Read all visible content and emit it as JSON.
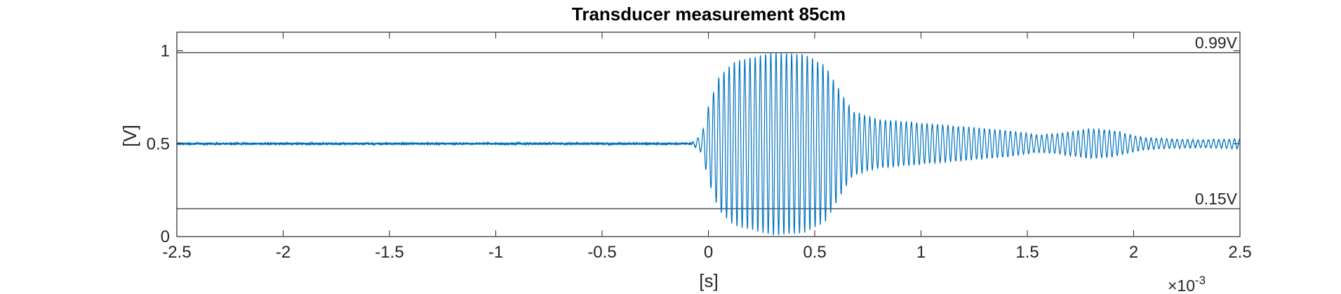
{
  "chart_data": {
    "type": "line",
    "title": "Transducer measurement 85cm",
    "xlabel": "[s]",
    "ylabel": "[V]",
    "x_exponent_label": "×10",
    "x_exponent_power": "-3",
    "xlim": [
      -2.5,
      2.5
    ],
    "ylim": [
      0,
      1.1
    ],
    "x_ticks": [
      "-2.5",
      "-2",
      "-1.5",
      "-1",
      "-0.5",
      "0",
      "0.5",
      "1",
      "1.5",
      "2",
      "2.5"
    ],
    "x_tick_values": [
      -2.5,
      -2,
      -1.5,
      -1,
      -0.5,
      0,
      0.5,
      1,
      1.5,
      2,
      2.5
    ],
    "y_ticks": [
      "0",
      "0.5",
      "1"
    ],
    "y_tick_values": [
      0,
      0.5,
      1
    ],
    "series_color": "#0072BD",
    "series": [
      {
        "signal_model": {
          "baseline": 0.5,
          "noise_amplitude": 0.006,
          "burst_start": -0.08,
          "end": 2.5,
          "period": 0.0245,
          "envelope": [
            [
              -0.08,
              0.0
            ],
            [
              -0.03,
              0.05
            ],
            [
              0.0,
              0.2
            ],
            [
              0.05,
              0.36
            ],
            [
              0.12,
              0.44
            ],
            [
              0.3,
              0.49
            ],
            [
              0.45,
              0.48
            ],
            [
              0.55,
              0.42
            ],
            [
              0.62,
              0.28
            ],
            [
              0.68,
              0.17
            ],
            [
              0.8,
              0.13
            ],
            [
              1.0,
              0.11
            ],
            [
              1.2,
              0.09
            ],
            [
              1.4,
              0.07
            ],
            [
              1.55,
              0.045
            ],
            [
              1.65,
              0.055
            ],
            [
              1.8,
              0.08
            ],
            [
              1.9,
              0.07
            ],
            [
              2.05,
              0.03
            ],
            [
              2.15,
              0.025
            ],
            [
              2.3,
              0.02
            ],
            [
              2.5,
              0.025
            ]
          ]
        }
      }
    ],
    "reference_lines": [
      {
        "y": 0.99,
        "label": "0.99V",
        "color": "#000000"
      },
      {
        "y": 0.15,
        "label": "0.15V",
        "color": "#000000"
      }
    ],
    "grid": false,
    "legend": "none"
  }
}
